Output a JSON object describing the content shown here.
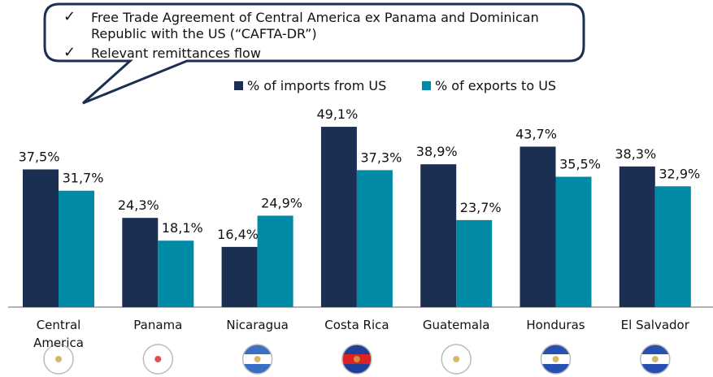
{
  "chart_data": {
    "type": "bar",
    "callout": [
      "Free Trade Agreement of Central America ex Panama and Dominican Republic with the US (“CAFTA-DR”)",
      "Relevant remittances flow"
    ],
    "categories": [
      "Central America",
      "Panama",
      "Nicaragua",
      "Costa Rica",
      "Guatemala",
      "Honduras",
      "El Salvador"
    ],
    "series": [
      {
        "name": "% of imports from US",
        "color": "#1b2f52",
        "values": [
          37.5,
          24.3,
          16.4,
          49.1,
          38.9,
          43.7,
          38.3
        ],
        "value_labels": [
          "37,5%",
          "24,3%",
          "16,4%",
          "49,1%",
          "38,9%",
          "43,7%",
          "38,3%"
        ]
      },
      {
        "name": "% of exports to US",
        "color": "#008aa5",
        "values": [
          31.7,
          18.1,
          24.9,
          37.3,
          23.7,
          35.5,
          32.9
        ],
        "value_labels": [
          "31,7%",
          "18,1%",
          "24,9%",
          "37,3%",
          "23,7%",
          "35,5%",
          "32,9%"
        ]
      }
    ]
  }
}
